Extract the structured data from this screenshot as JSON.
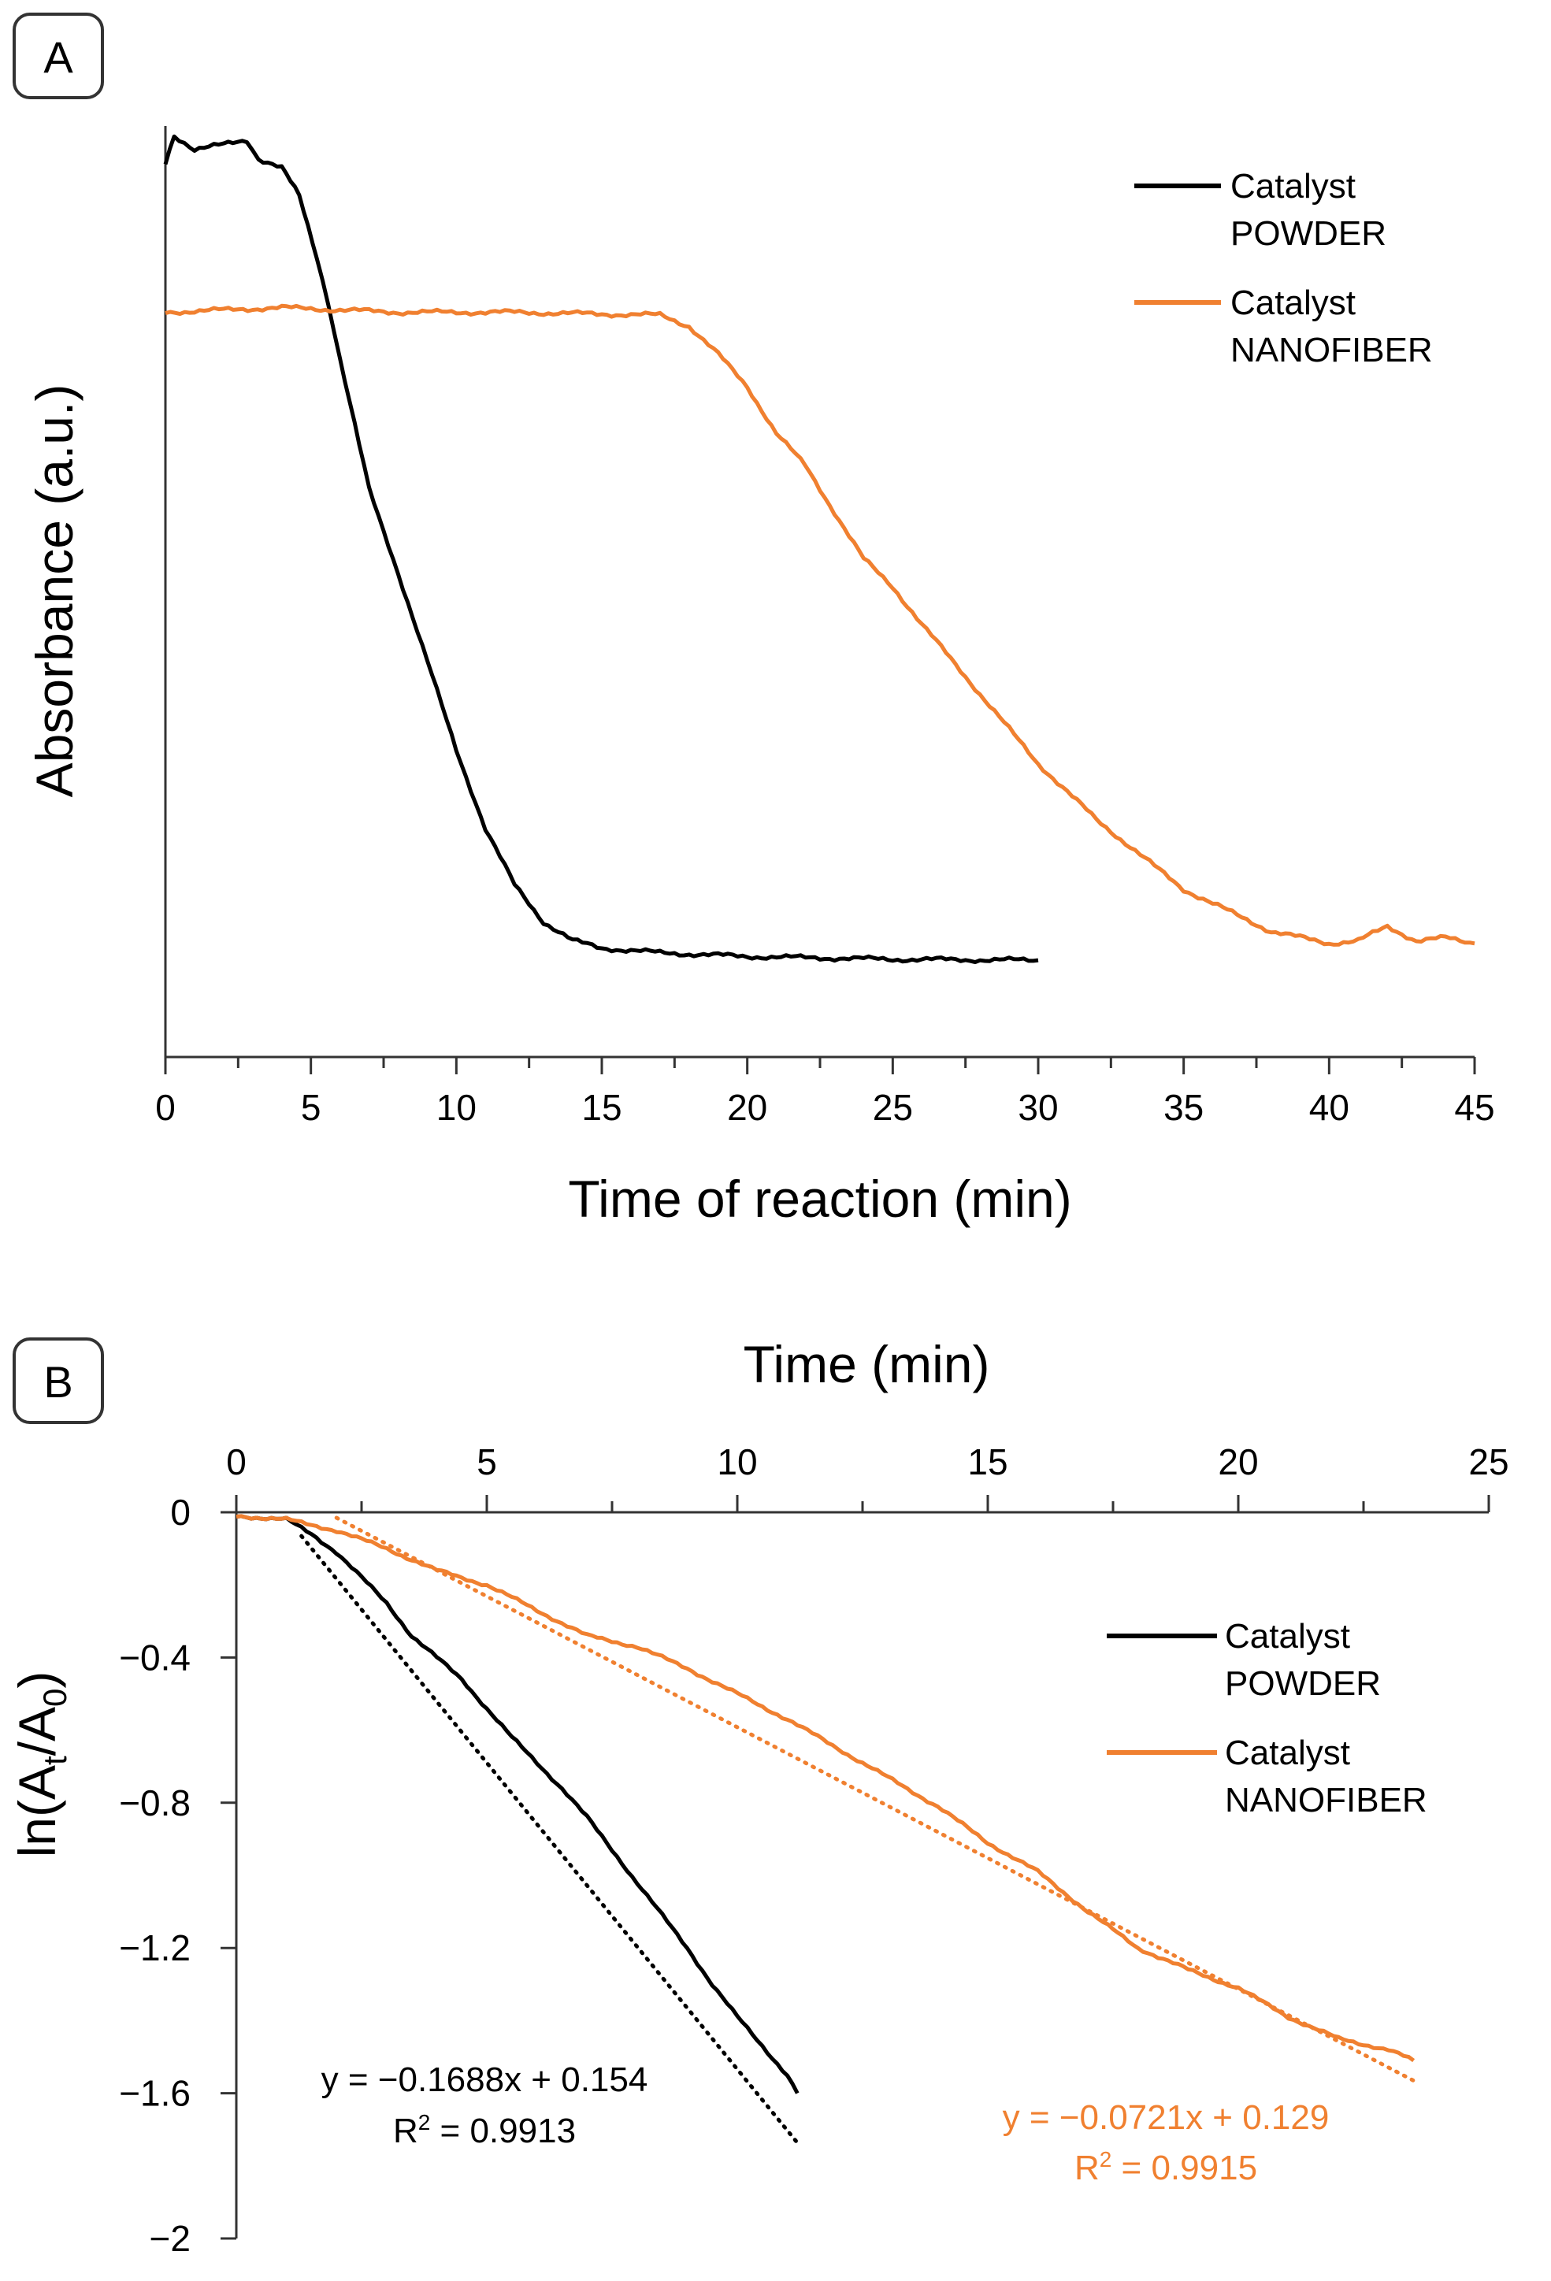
{
  "colors": {
    "powder": "#000000",
    "nanofiber": "#f08030",
    "axis": "#333333",
    "text": "#111111"
  },
  "chart_data": [
    {
      "type": "line",
      "panel": "A",
      "xlabel": "Time of reaction (min)",
      "ylabel": "Absorbance (a.u.)",
      "xlim": [
        0,
        45
      ],
      "x_ticks": [
        "0",
        "5",
        "10",
        "15",
        "20",
        "25",
        "30",
        "35",
        "40",
        "45"
      ],
      "ylim": [
        0,
        1
      ],
      "y_ticks": [],
      "grid": false,
      "legend": "top-right",
      "series": [
        {
          "name": "Catalyst POWDER",
          "legend_lines": [
            "Catalyst",
            "POWDER"
          ],
          "color": "#000000",
          "points": [
            [
              0,
              0.96
            ],
            [
              0.3,
              0.99
            ],
            [
              1,
              0.975
            ],
            [
              2,
              0.98
            ],
            [
              2.8,
              0.985
            ],
            [
              3.2,
              0.965
            ],
            [
              4,
              0.955
            ],
            [
              4.6,
              0.925
            ],
            [
              5.2,
              0.86
            ],
            [
              5.6,
              0.81
            ],
            [
              6,
              0.75
            ],
            [
              6.5,
              0.68
            ],
            [
              7,
              0.61
            ],
            [
              8,
              0.52
            ],
            [
              9,
              0.425
            ],
            [
              10,
              0.33
            ],
            [
              11,
              0.245
            ],
            [
              12,
              0.185
            ],
            [
              13,
              0.145
            ],
            [
              14,
              0.125
            ],
            [
              15,
              0.117
            ],
            [
              17,
              0.112
            ],
            [
              20,
              0.108
            ],
            [
              25,
              0.105
            ],
            [
              30,
              0.104
            ]
          ]
        },
        {
          "name": "Catalyst NANOFIBER",
          "legend_lines": [
            "Catalyst",
            "NANOFIBER"
          ],
          "color": "#f08030",
          "points": [
            [
              0,
              0.8
            ],
            [
              4,
              0.805
            ],
            [
              8,
              0.8
            ],
            [
              12,
              0.8
            ],
            [
              15,
              0.798
            ],
            [
              17,
              0.797
            ],
            [
              18,
              0.785
            ],
            [
              19,
              0.755
            ],
            [
              20,
              0.72
            ],
            [
              21,
              0.67
            ],
            [
              22,
              0.635
            ],
            [
              23,
              0.585
            ],
            [
              24,
              0.535
            ],
            [
              25,
              0.505
            ],
            [
              26,
              0.465
            ],
            [
              28,
              0.39
            ],
            [
              30,
              0.315
            ],
            [
              32,
              0.255
            ],
            [
              33,
              0.23
            ],
            [
              35,
              0.18
            ],
            [
              36,
              0.165
            ],
            [
              38,
              0.135
            ],
            [
              40,
              0.122
            ],
            [
              41,
              0.125
            ],
            [
              42,
              0.14
            ],
            [
              43,
              0.125
            ],
            [
              44,
              0.128
            ],
            [
              45,
              0.122
            ]
          ]
        }
      ]
    },
    {
      "type": "line",
      "panel": "B",
      "xlabel": "Time (min)",
      "ylabel_main": "ln(A",
      "ylabel_sub1": "t",
      "ylabel_mid": "/A",
      "ylabel_sub2": "0",
      "ylabel_end": ")",
      "xlim": [
        0,
        25
      ],
      "x_ticks": [
        "0",
        "5",
        "10",
        "15",
        "20",
        "25"
      ],
      "ylim": [
        -2,
        0
      ],
      "y_ticks": [
        "0",
        "−0.4",
        "−0.8",
        "−1.2",
        "−1.6",
        "−2"
      ],
      "grid": false,
      "legend": "right",
      "series": [
        {
          "name": "Catalyst POWDER",
          "legend_lines": [
            "Catalyst",
            "POWDER"
          ],
          "color": "#000000",
          "points": [
            [
              0,
              -0.01
            ],
            [
              0.5,
              -0.015
            ],
            [
              1,
              -0.02
            ],
            [
              1.5,
              -0.06
            ],
            [
              2,
              -0.11
            ],
            [
              2.5,
              -0.18
            ],
            [
              3,
              -0.25
            ],
            [
              3.5,
              -0.34
            ],
            [
              4,
              -0.4
            ],
            [
              4.5,
              -0.46
            ],
            [
              5,
              -0.54
            ],
            [
              5.5,
              -0.62
            ],
            [
              6,
              -0.69
            ],
            [
              6.5,
              -0.76
            ],
            [
              7,
              -0.84
            ],
            [
              7.5,
              -0.93
            ],
            [
              8,
              -1.02
            ],
            [
              8.5,
              -1.11
            ],
            [
              9,
              -1.2
            ],
            [
              9.5,
              -1.3
            ],
            [
              10,
              -1.39
            ],
            [
              10.5,
              -1.47
            ],
            [
              11,
              -1.55
            ],
            [
              11.2,
              -1.6
            ]
          ]
        },
        {
          "name": "Catalyst NANOFIBER",
          "legend_lines": [
            "Catalyst",
            "NANOFIBER"
          ],
          "color": "#f08030",
          "points": [
            [
              0,
              -0.01
            ],
            [
              1,
              -0.02
            ],
            [
              2,
              -0.05
            ],
            [
              3,
              -0.1
            ],
            [
              4,
              -0.16
            ],
            [
              5,
              -0.2
            ],
            [
              6,
              -0.27
            ],
            [
              7,
              -0.34
            ],
            [
              8,
              -0.37
            ],
            [
              9,
              -0.43
            ],
            [
              10,
              -0.5
            ],
            [
              11,
              -0.57
            ],
            [
              12,
              -0.65
            ],
            [
              13,
              -0.73
            ],
            [
              14,
              -0.81
            ],
            [
              15,
              -0.91
            ],
            [
              16,
              -0.99
            ],
            [
              17,
              -1.1
            ],
            [
              18,
              -1.2
            ],
            [
              19,
              -1.26
            ],
            [
              20,
              -1.31
            ],
            [
              21,
              -1.39
            ],
            [
              22,
              -1.45
            ],
            [
              23,
              -1.48
            ],
            [
              23.5,
              -1.51
            ]
          ]
        }
      ],
      "fits": [
        {
          "series": "Catalyst POWDER",
          "slope": -0.1688,
          "intercept": 0.154,
          "x_range": [
            1.3,
            11.2
          ],
          "color": "#000000",
          "equation": "y = −0.1688x + 0.154",
          "r2_prefix": "R",
          "r2_exp": "2",
          "r2_value": " = 0.9913"
        },
        {
          "series": "Catalyst NANOFIBER",
          "slope": -0.0721,
          "intercept": 0.129,
          "x_range": [
            2,
            23.5
          ],
          "color": "#f08030",
          "equation": "y = −0.0721x + 0.129",
          "r2_prefix": "R",
          "r2_exp": "2",
          "r2_value": " = 0.9915"
        }
      ]
    }
  ]
}
